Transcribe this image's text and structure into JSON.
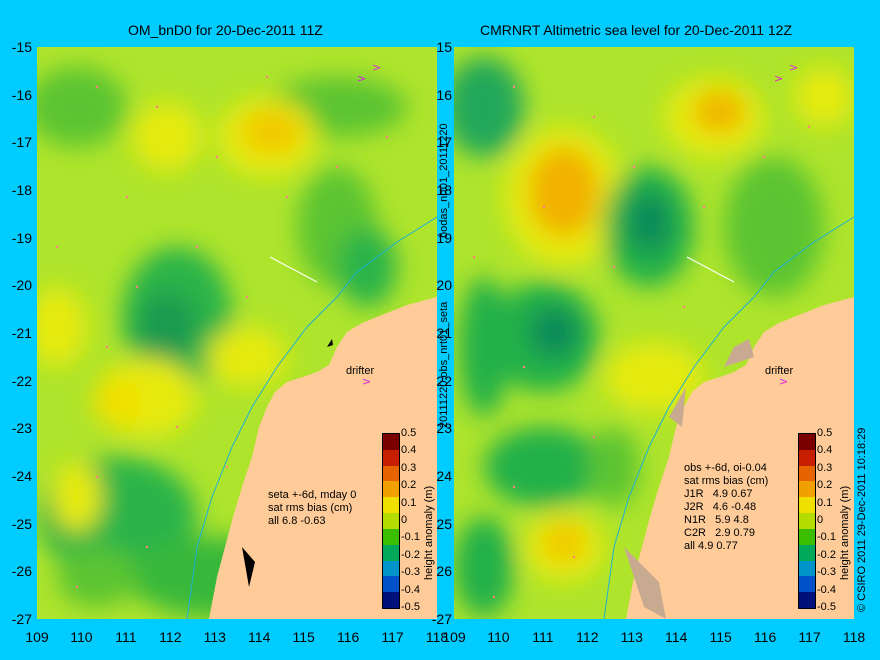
{
  "left_panel": {
    "title": "OM_bnD0 for 20-Dec-2011 11Z",
    "drifter_label": "drifter",
    "stats": {
      "line1": "seta +-6d, mday 0",
      "line2": "sat rms bias (cm)",
      "line3": "all 6.8 -0.63"
    }
  },
  "right_panel": {
    "title": "CMRNRT Altimetric sea level  for 20-Dec-2011 12Z",
    "drifter_label": "drifter",
    "stats": {
      "line1": "obs +-6d, oi-0.04",
      "line2": "sat rms bias (cm)",
      "line3": "J1R   4.9 0.67",
      "line4": "J2R   4.6 -0.48",
      "line5": "N1R   5.9 4.8",
      "line6": "C2R   2.9 0.79",
      "line7": "all 4.9 0.77"
    }
  },
  "axes": {
    "lat_ticks": [
      "-15",
      "-16",
      "-17",
      "-18",
      "-19",
      "-20",
      "-21",
      "-22",
      "-23",
      "-24",
      "-25",
      "-26",
      "-27"
    ],
    "lon_ticks": [
      "109",
      "110",
      "111",
      "112",
      "113",
      "114",
      "115",
      "116",
      "117",
      "118"
    ]
  },
  "colorbar": {
    "label": "height anomaly (m)",
    "ticks": [
      "0.5",
      "0.4",
      "0.3",
      "0.2",
      "0.1",
      "0",
      "-0.1",
      "-0.2",
      "-0.3",
      "-0.4",
      "-0.5"
    ],
    "colors": [
      "#7a0000",
      "#c81e00",
      "#e66400",
      "#f0a000",
      "#f0e000",
      "#b4dc00",
      "#3cbe00",
      "#00a85a",
      "#0094c8",
      "#0050c8",
      "#00107a"
    ]
  },
  "side_text": {
    "middle": "20111220.obs_nrt01_seta",
    "middle_top": "bodas_nrt01_20111220",
    "right": "© CSIRO 2011   29-Dec-2011 10:18:29"
  },
  "colors": {
    "background": "#00ccff",
    "land": "#ffcc99",
    "ocean_base": "#aee42c",
    "high": "#f0a000",
    "low": "#22b04a"
  }
}
